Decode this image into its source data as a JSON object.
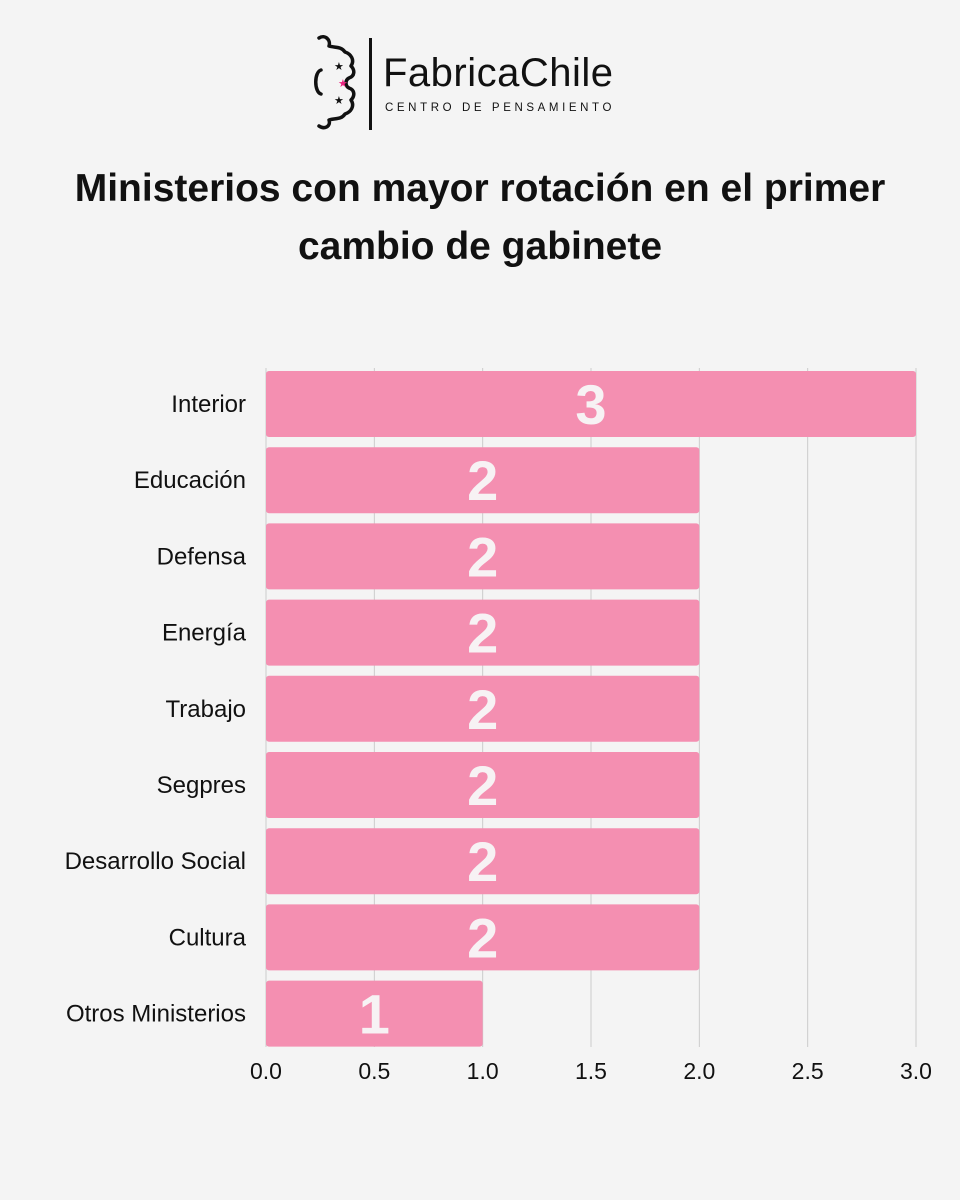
{
  "brand": {
    "name": "FabricaChile",
    "tagline": "CENTRO DE PENSAMIENTO",
    "logo_icon": "gear-with-stars-icon",
    "star_color": "#e8237f"
  },
  "title": "Ministerios con mayor rotación en el primer cambio de gabinete",
  "colors": {
    "bar": "#f48fb1",
    "bar_label": "#f7f2f4",
    "background": "#f4f4f4",
    "grid": "#cccccc",
    "text": "#111111"
  },
  "chart_data": {
    "type": "bar",
    "orientation": "horizontal",
    "title": "Ministerios con mayor rotación en el primer cambio de gabinete",
    "categories": [
      "Interior",
      "Educación",
      "Defensa",
      "Energía",
      "Trabajo",
      "Segpres",
      "Desarrollo Social",
      "Cultura",
      "Otros Ministerios"
    ],
    "values": [
      3,
      2,
      2,
      2,
      2,
      2,
      2,
      2,
      1
    ],
    "data_labels": [
      "3",
      "2",
      "2",
      "2",
      "2",
      "2",
      "2",
      "2",
      "1"
    ],
    "xlabel": "",
    "ylabel": "",
    "xlim": [
      0,
      3
    ],
    "x_ticks": [
      "0.0",
      "0.5",
      "1.0",
      "1.5",
      "2.0",
      "2.5",
      "3.0"
    ],
    "grid": "vertical",
    "legend": "none"
  }
}
